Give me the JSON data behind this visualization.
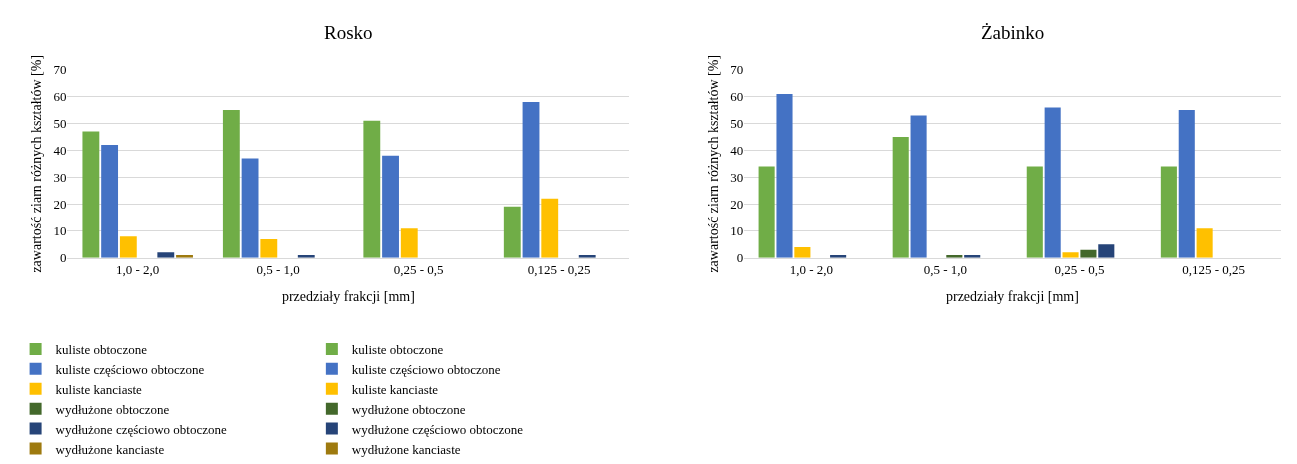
{
  "chart_data": [
    {
      "type": "bar",
      "title": "Rosko",
      "xlabel": "przedziały frakcji [mm]",
      "ylabel": "zawartość ziarn różnych kształtów [%]",
      "categories": [
        "1,0 - 2,0",
        "0,5 - 1,0",
        "0,25 - 0,5",
        "0,125 - 0,25"
      ],
      "series": [
        {
          "name": "kuliste obtoczone",
          "color": "#70ad47",
          "values": [
            47,
            55,
            51,
            19
          ]
        },
        {
          "name": "kuliste częściowo obtoczone",
          "color": "#4472c4",
          "values": [
            42,
            37,
            38,
            58
          ]
        },
        {
          "name": "kuliste kanciaste",
          "color": "#ffc000",
          "values": [
            8,
            7,
            11,
            22
          ]
        },
        {
          "name": "wydłużone obtoczone",
          "color": "#43682b",
          "values": [
            null,
            null,
            null,
            null
          ]
        },
        {
          "name": "wydłużone częściowo obtoczone",
          "color": "#264478",
          "values": [
            2,
            1,
            null,
            1
          ]
        },
        {
          "name": "wydłużone kanciaste",
          "color": "#9e7a0f",
          "values": [
            1,
            null,
            null,
            null
          ]
        }
      ],
      "ylim": [
        0,
        70
      ],
      "yticks": [
        0,
        10,
        20,
        30,
        40,
        50,
        60,
        70
      ],
      "grid": "y",
      "legend": "bottom"
    },
    {
      "type": "bar",
      "title": "Żabinko",
      "xlabel": "przedziały frakcji [mm]",
      "ylabel": "zawartość ziarn różnych kształtów [%]",
      "categories": [
        "1,0 - 2,0",
        "0,5 - 1,0",
        "0,25 - 0,5",
        "0,125 - 0,25"
      ],
      "series": [
        {
          "name": "kuliste obtoczone",
          "color": "#70ad47",
          "values": [
            34,
            45,
            34,
            34
          ]
        },
        {
          "name": "kuliste częściowo obtoczone",
          "color": "#4472c4",
          "values": [
            61,
            53,
            56,
            55
          ]
        },
        {
          "name": "kuliste kanciaste",
          "color": "#ffc000",
          "values": [
            4,
            null,
            2,
            11
          ]
        },
        {
          "name": "wydłużone obtoczone",
          "color": "#43682b",
          "values": [
            null,
            1,
            3,
            null
          ]
        },
        {
          "name": "wydłużone częściowo obtoczone",
          "color": "#264478",
          "values": [
            1,
            1,
            5,
            null
          ]
        },
        {
          "name": "wydłużone kanciaste",
          "color": "#9e7a0f",
          "values": [
            null,
            null,
            null,
            null
          ]
        }
      ],
      "ylim": [
        0,
        70
      ],
      "yticks": [
        0,
        10,
        20,
        30,
        40,
        50,
        60,
        70
      ],
      "grid": "y",
      "legend": "bottom"
    }
  ]
}
